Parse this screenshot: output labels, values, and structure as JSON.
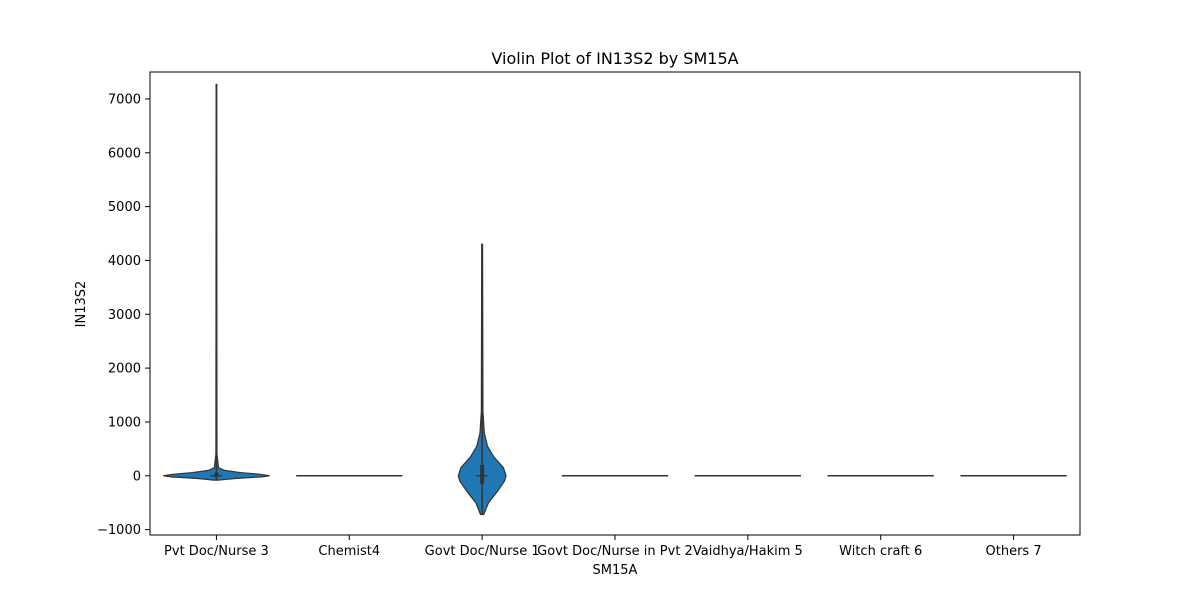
{
  "chart_data": {
    "type": "violin",
    "title": "Violin Plot of IN13S2 by SM15A",
    "xlabel": "SM15A",
    "ylabel": "IN13S2",
    "ylim": [
      -1100,
      7500
    ],
    "yticks": [
      -1000,
      0,
      1000,
      2000,
      3000,
      4000,
      5000,
      6000,
      7000
    ],
    "ytick_labels": [
      "−1000",
      "0",
      "1000",
      "2000",
      "3000",
      "4000",
      "5000",
      "6000",
      "7000"
    ],
    "categories": [
      "Pvt Doc/Nurse 3",
      "Chemist4",
      "Govt Doc/Nurse 1",
      "Govt Doc/Nurse in Pvt 2",
      "Vaidhya/Hakim 5",
      "Witch craft 6",
      "Others 7"
    ],
    "violin_color": "#1f77b4",
    "edge_color": "#333333",
    "grid": false,
    "violins": [
      {
        "category": "Pvt Doc/Nurse 3",
        "min": -80,
        "max": 7270,
        "median": 0,
        "q1": -20,
        "q3": 60,
        "profile": [
          [
            -80,
            0.05
          ],
          [
            -50,
            0.35
          ],
          [
            -20,
            0.85
          ],
          [
            0,
            1.0
          ],
          [
            30,
            0.8
          ],
          [
            60,
            0.45
          ],
          [
            100,
            0.15
          ],
          [
            150,
            0.04
          ],
          [
            400,
            0.01
          ],
          [
            7270,
            0.005
          ]
        ]
      },
      {
        "category": "Chemist4",
        "min": 0,
        "max": 0,
        "median": 0,
        "q1": 0,
        "q3": 0,
        "profile": [
          [
            0,
            1.0
          ]
        ]
      },
      {
        "category": "Govt Doc/Nurse 1",
        "min": -720,
        "max": 4300,
        "median": 0,
        "q1": -150,
        "q3": 200,
        "profile": [
          [
            -720,
            0.03
          ],
          [
            -500,
            0.12
          ],
          [
            -300,
            0.28
          ],
          [
            -100,
            0.42
          ],
          [
            0,
            0.45
          ],
          [
            150,
            0.4
          ],
          [
            350,
            0.22
          ],
          [
            550,
            0.1
          ],
          [
            800,
            0.04
          ],
          [
            1200,
            0.015
          ],
          [
            4300,
            0.008
          ]
        ]
      },
      {
        "category": "Govt Doc/Nurse in Pvt 2",
        "min": 0,
        "max": 0,
        "median": 0,
        "q1": 0,
        "q3": 0,
        "profile": [
          [
            0,
            1.0
          ]
        ]
      },
      {
        "category": "Vaidhya/Hakim 5",
        "min": 0,
        "max": 0,
        "median": 0,
        "q1": 0,
        "q3": 0,
        "profile": [
          [
            0,
            1.0
          ]
        ]
      },
      {
        "category": "Witch craft 6",
        "min": 0,
        "max": 0,
        "median": 0,
        "q1": 0,
        "q3": 0,
        "profile": [
          [
            0,
            1.0
          ]
        ]
      },
      {
        "category": "Others 7",
        "min": 0,
        "max": 0,
        "median": 0,
        "q1": 0,
        "q3": 0,
        "profile": [
          [
            0,
            1.0
          ]
        ]
      }
    ]
  }
}
